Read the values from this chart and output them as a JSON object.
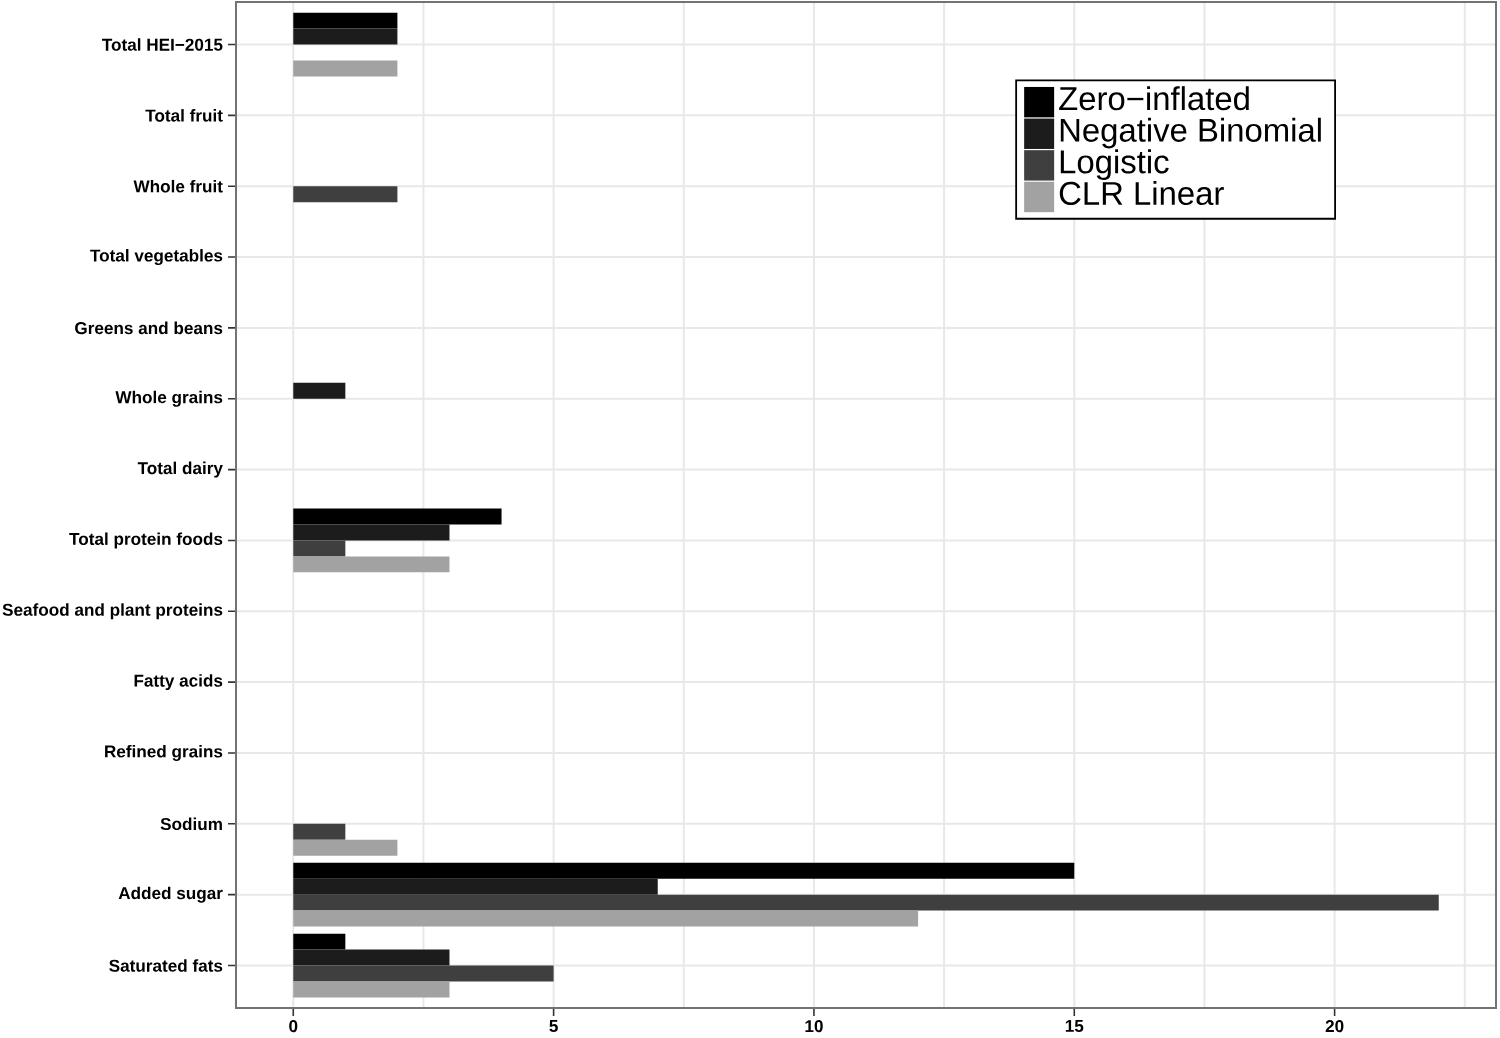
{
  "chart_data": {
    "type": "bar",
    "orientation": "horizontal",
    "categories": [
      "Total HEI−2015",
      "Total fruit",
      "Whole fruit",
      "Total vegetables",
      "Greens and beans",
      "Whole grains",
      "Total dairy",
      "Total protein foods",
      "Seafood and plant proteins",
      "Fatty acids",
      "Refined grains",
      "Sodium",
      "Added sugar",
      "Saturated fats"
    ],
    "series": [
      {
        "name": "Zero−inflated",
        "color": "#000000",
        "values": [
          2,
          0,
          0,
          0,
          0,
          0,
          0,
          4,
          0,
          0,
          0,
          0,
          15,
          1
        ]
      },
      {
        "name": "Negative Binomial",
        "color": "#1c1c1c",
        "values": [
          2,
          0,
          0,
          0,
          0,
          1,
          0,
          3,
          0,
          0,
          0,
          0,
          7,
          3
        ]
      },
      {
        "name": "Logistic",
        "color": "#3f3f3f",
        "values": [
          0,
          0,
          2,
          0,
          0,
          0,
          0,
          1,
          0,
          0,
          0,
          1,
          22,
          5
        ]
      },
      {
        "name": "CLR Linear",
        "color": "#a2a2a2",
        "values": [
          2,
          0,
          0,
          0,
          0,
          0,
          0,
          3,
          0,
          0,
          0,
          2,
          12,
          3
        ]
      }
    ],
    "xlim": [
      -1.1,
      23.1
    ],
    "xticks": [
      0,
      5,
      10,
      15,
      20
    ],
    "grid": true,
    "legend": "top right"
  }
}
